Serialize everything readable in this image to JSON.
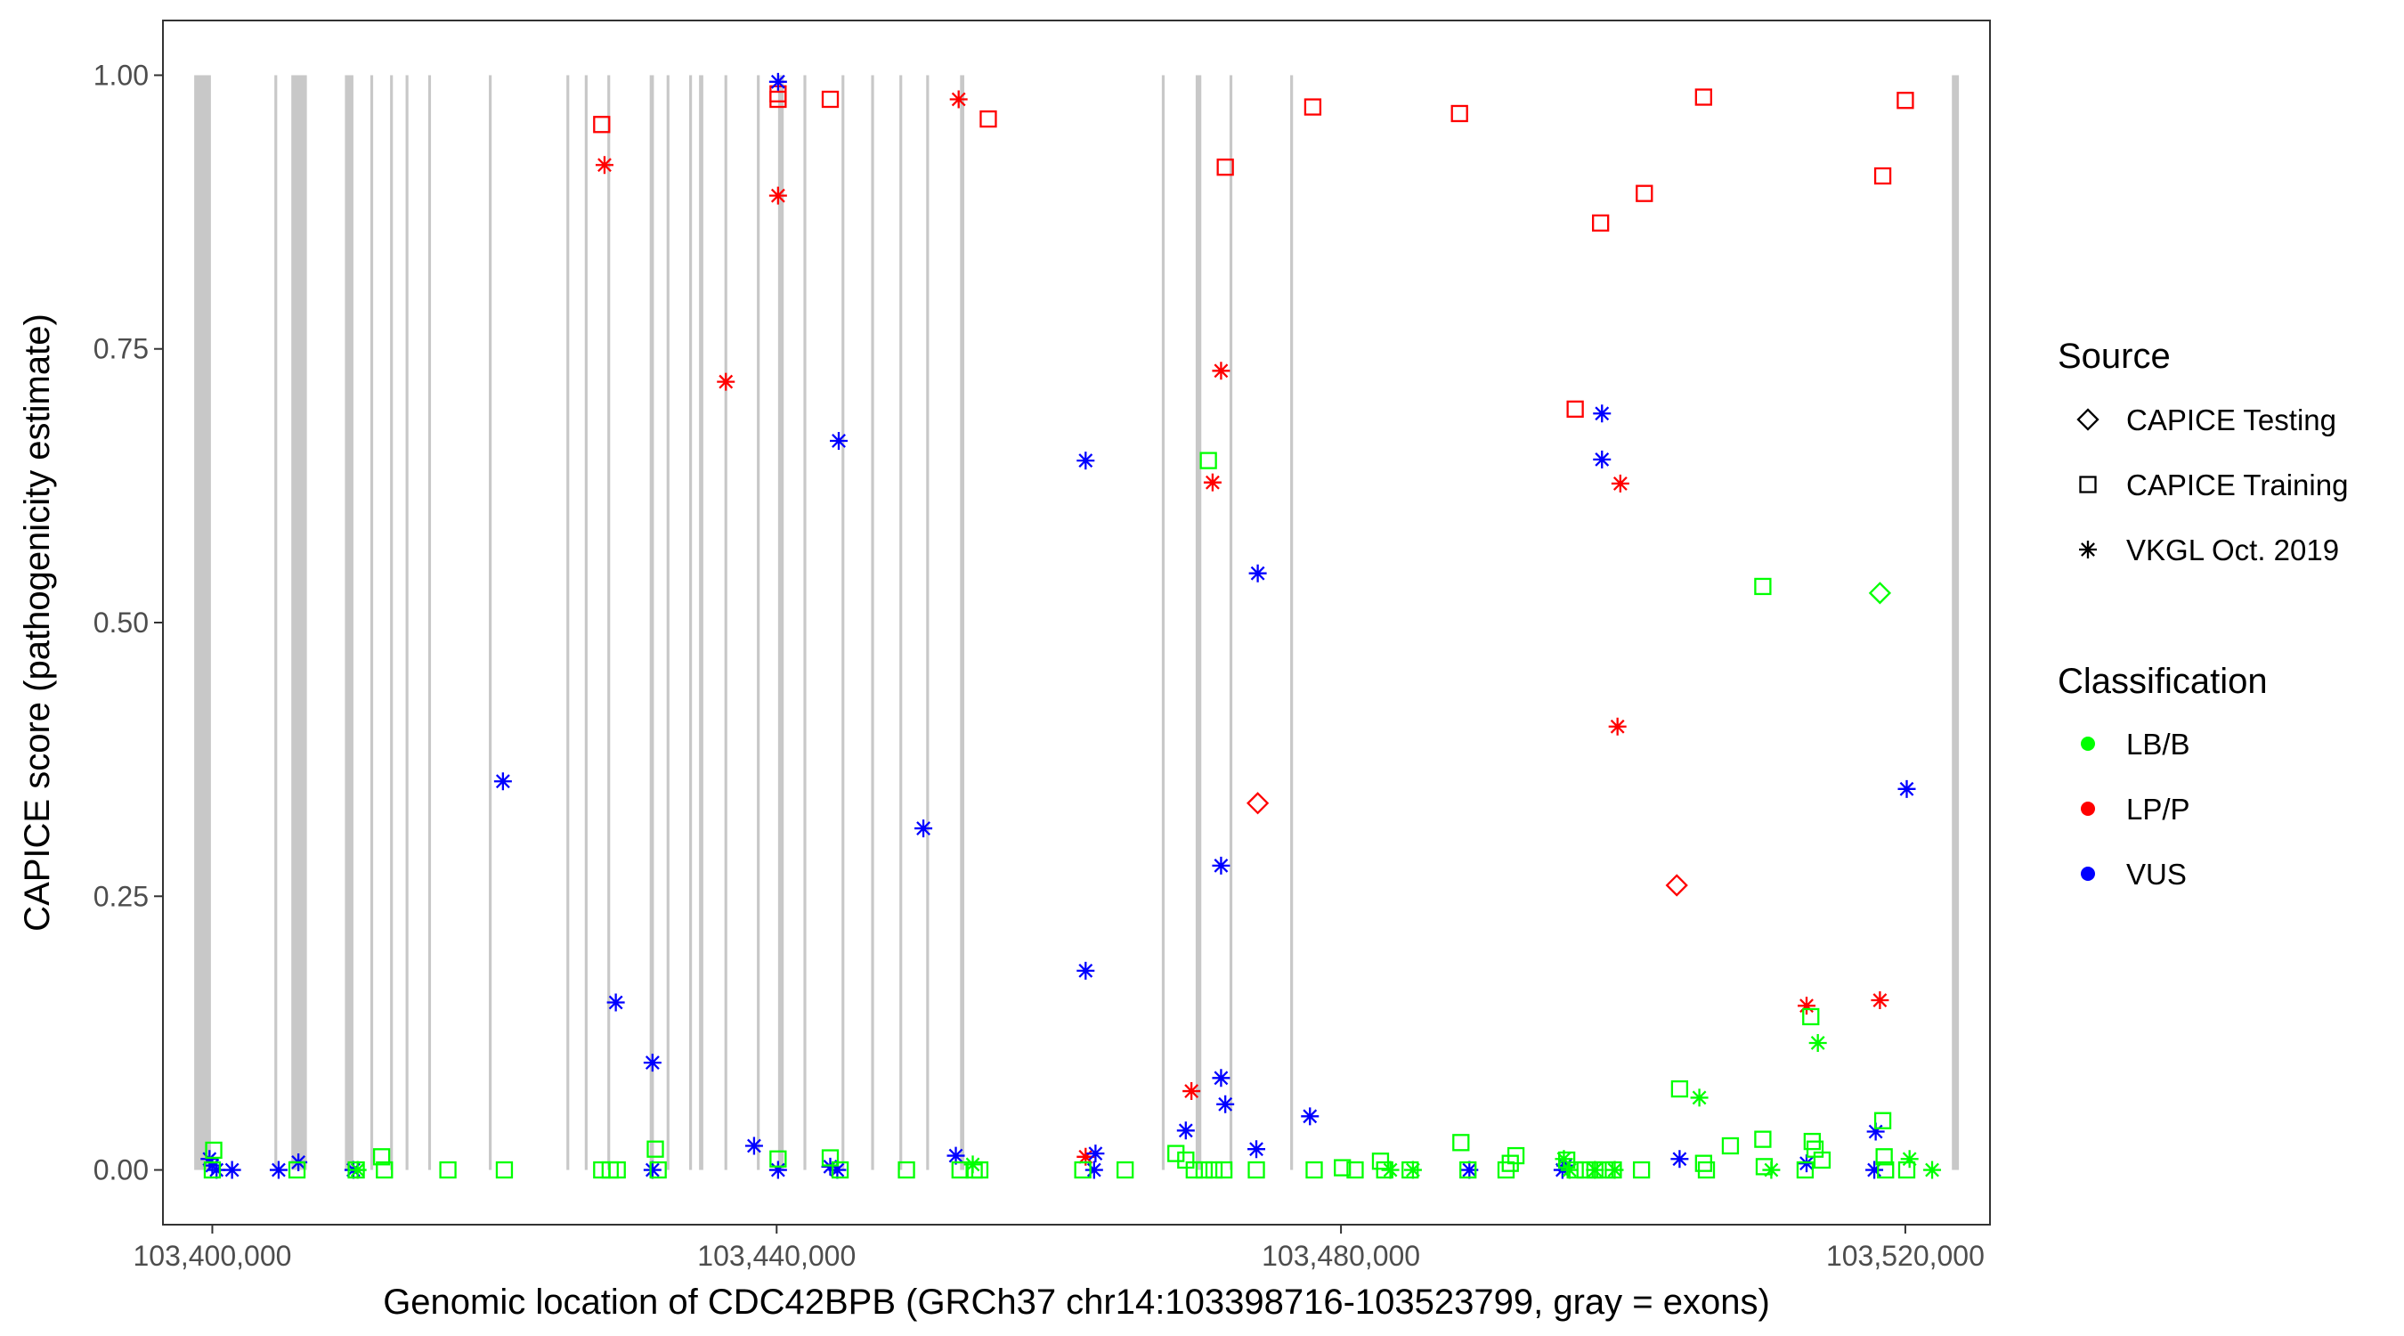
{
  "chart_data": {
    "type": "scatter",
    "title": "",
    "xlabel": "Genomic location of CDC42BPB (GRCh37 chr14:103398716-103523799, gray = exons)",
    "ylabel": "CAPICE score (pathogenicity estimate)",
    "xlim": [
      103396500,
      103526000
    ],
    "ylim": [
      -0.05,
      1.05
    ],
    "x_ticks": [
      103400000,
      103440000,
      103480000,
      103520000
    ],
    "x_tick_labels": [
      "103,400,000",
      "103,440,000",
      "103,480,000",
      "103,520,000"
    ],
    "y_ticks": [
      0,
      0.25,
      0.5,
      0.75,
      1
    ],
    "y_tick_labels": [
      "0.00",
      "0.25",
      "0.50",
      "0.75",
      "1.00"
    ],
    "grid": false,
    "exon_color": "#c8c8c8",
    "exons": [
      [
        103398716,
        103399900
      ],
      [
        103404400,
        103404600
      ],
      [
        103405600,
        103406700
      ],
      [
        103409400,
        103410000
      ],
      [
        103411200,
        103411400
      ],
      [
        103412600,
        103412800
      ],
      [
        103413700,
        103413900
      ],
      [
        103415300,
        103415500
      ],
      [
        103419600,
        103419800
      ],
      [
        103425100,
        103425300
      ],
      [
        103426400,
        103426600
      ],
      [
        103428000,
        103428200
      ],
      [
        103431000,
        103431300
      ],
      [
        103432200,
        103432400
      ],
      [
        103433800,
        103434000
      ],
      [
        103434500,
        103434800
      ],
      [
        103436300,
        103436500
      ],
      [
        103438600,
        103438800
      ],
      [
        103440100,
        103440500
      ],
      [
        103441900,
        103442100
      ],
      [
        103444600,
        103444800
      ],
      [
        103446700,
        103446900
      ],
      [
        103448700,
        103448900
      ],
      [
        103450600,
        103450800
      ],
      [
        103453000,
        103453300
      ],
      [
        103467300,
        103467500
      ],
      [
        103469700,
        103470100
      ],
      [
        103472100,
        103472300
      ],
      [
        103476400,
        103476600
      ],
      [
        103523300,
        103523799
      ]
    ],
    "legend": {
      "position": "right",
      "shape_title": "Source",
      "shapes": [
        {
          "label": "CAPICE Testing",
          "shape": "diamond"
        },
        {
          "label": "CAPICE Training",
          "shape": "square"
        },
        {
          "label": "VKGL Oct. 2019",
          "shape": "asterisk"
        }
      ],
      "color_title": "Classification",
      "colors": [
        {
          "label": "LB/B",
          "color": "#00ff00"
        },
        {
          "label": "LP/P",
          "color": "#ff0000"
        },
        {
          "label": "VUS",
          "color": "#0000ff"
        }
      ]
    },
    "series": [
      {
        "source": "CAPICE Training",
        "classification": "LP/P",
        "points": [
          [
            103427600,
            0.955
          ],
          [
            103440100,
            0.978
          ],
          [
            103440100,
            0.983
          ],
          [
            103443800,
            0.978
          ],
          [
            103455000,
            0.96
          ],
          [
            103471800,
            0.916
          ],
          [
            103478000,
            0.971
          ],
          [
            103488400,
            0.965
          ],
          [
            103496600,
            0.695
          ],
          [
            103498400,
            0.865
          ],
          [
            103501500,
            0.892
          ],
          [
            103505700,
            0.98
          ],
          [
            103518400,
            0.908
          ],
          [
            103520000,
            0.977
          ]
        ]
      },
      {
        "source": "VKGL Oct. 2019",
        "classification": "LP/P",
        "points": [
          [
            103427800,
            0.918
          ],
          [
            103436400,
            0.72
          ],
          [
            103440100,
            0.89
          ],
          [
            103452900,
            0.978
          ],
          [
            103461900,
            0.012
          ],
          [
            103469400,
            0.072
          ],
          [
            103470900,
            0.628
          ],
          [
            103471500,
            0.73
          ],
          [
            103499600,
            0.405
          ],
          [
            103499800,
            0.627
          ],
          [
            103513000,
            0.15
          ],
          [
            103518200,
            0.155
          ]
        ]
      },
      {
        "source": "CAPICE Testing",
        "classification": "LP/P",
        "points": [
          [
            103474100,
            0.335
          ],
          [
            103503800,
            0.26
          ]
        ]
      },
      {
        "source": "VKGL Oct. 2019",
        "classification": "VUS",
        "points": [
          [
            103399800,
            0.01
          ],
          [
            103400000,
            0.004
          ],
          [
            103400300,
            0.0
          ],
          [
            103401400,
            0.0
          ],
          [
            103404700,
            0.0
          ],
          [
            103406100,
            0.007
          ],
          [
            103410000,
            0.0
          ],
          [
            103420600,
            0.355
          ],
          [
            103428600,
            0.153
          ],
          [
            103431200,
            0.098
          ],
          [
            103431200,
            0.0
          ],
          [
            103438400,
            0.022
          ],
          [
            103440100,
            0.994
          ],
          [
            103440100,
            0.0
          ],
          [
            103444400,
            0.666
          ],
          [
            103443800,
            0.003
          ],
          [
            103444300,
            0.0
          ],
          [
            103450400,
            0.312
          ],
          [
            103452700,
            0.013
          ],
          [
            103461900,
            0.648
          ],
          [
            103461900,
            0.182
          ],
          [
            103462600,
            0.015
          ],
          [
            103462500,
            0.0
          ],
          [
            103469000,
            0.036
          ],
          [
            103471500,
            0.084
          ],
          [
            103471500,
            0.278
          ],
          [
            103471800,
            0.06
          ],
          [
            103474100,
            0.545
          ],
          [
            103474000,
            0.019
          ],
          [
            103477800,
            0.049
          ],
          [
            103489100,
            0.0
          ],
          [
            103495900,
            0.004
          ],
          [
            103495700,
            0.0
          ],
          [
            103498500,
            0.691
          ],
          [
            103498500,
            0.649
          ],
          [
            103504000,
            0.01
          ],
          [
            103513000,
            0.006
          ],
          [
            103517900,
            0.035
          ],
          [
            103517800,
            0.0
          ],
          [
            103520100,
            0.348
          ]
        ]
      },
      {
        "source": "CAPICE Training",
        "classification": "LB/B",
        "points": [
          [
            103400100,
            0.018
          ],
          [
            103400000,
            0.0
          ],
          [
            103406000,
            0.0
          ],
          [
            103410200,
            0.0
          ],
          [
            103412000,
            0.012
          ],
          [
            103412200,
            0.0
          ],
          [
            103416700,
            0.0
          ],
          [
            103420700,
            0.0
          ],
          [
            103427600,
            0.0
          ],
          [
            103428200,
            0.0
          ],
          [
            103428700,
            0.0
          ],
          [
            103431400,
            0.019
          ],
          [
            103431600,
            0.0
          ],
          [
            103440100,
            0.01
          ],
          [
            103443800,
            0.011
          ],
          [
            103444500,
            0.0
          ],
          [
            103449200,
            0.0
          ],
          [
            103453000,
            0.0
          ],
          [
            103454000,
            0.0
          ],
          [
            103454400,
            0.0
          ],
          [
            103461700,
            0.0
          ],
          [
            103464700,
            0.0
          ],
          [
            103468300,
            0.015
          ],
          [
            103469000,
            0.009
          ],
          [
            103469600,
            0.0
          ],
          [
            103470300,
            0.0
          ],
          [
            103470600,
            0.648
          ],
          [
            103471000,
            0.0
          ],
          [
            103471700,
            0.0
          ],
          [
            103474000,
            0.0
          ],
          [
            103478100,
            0.0
          ],
          [
            103480100,
            0.002
          ],
          [
            103481000,
            0.0
          ],
          [
            103482800,
            0.008
          ],
          [
            103483100,
            0.0
          ],
          [
            103484900,
            0.0
          ],
          [
            103488500,
            0.025
          ],
          [
            103489000,
            0.0
          ],
          [
            103491700,
            0.0
          ],
          [
            103492000,
            0.006
          ],
          [
            103492400,
            0.013
          ],
          [
            103496000,
            0.009
          ],
          [
            103496600,
            0.0
          ],
          [
            103497300,
            0.0
          ],
          [
            103498000,
            0.0
          ],
          [
            103498700,
            0.0
          ],
          [
            103499300,
            0.0
          ],
          [
            103501300,
            0.0
          ],
          [
            103504000,
            0.074
          ],
          [
            103505700,
            0.006
          ],
          [
            103505900,
            0.0
          ],
          [
            103507600,
            0.022
          ],
          [
            103509900,
            0.028
          ],
          [
            103510000,
            0.003
          ],
          [
            103509900,
            0.533
          ],
          [
            103512900,
            0.0
          ],
          [
            103513400,
            0.026
          ],
          [
            103513600,
            0.019
          ],
          [
            103514100,
            0.009
          ],
          [
            103513300,
            0.14
          ],
          [
            103518400,
            0.045
          ],
          [
            103518500,
            0.012
          ],
          [
            103518600,
            0.0
          ],
          [
            103520100,
            0.0
          ]
        ]
      },
      {
        "source": "VKGL Oct. 2019",
        "classification": "LB/B",
        "points": [
          [
            103410300,
            0.0
          ],
          [
            103453900,
            0.005
          ],
          [
            103483500,
            0.0
          ],
          [
            103485100,
            0.0
          ],
          [
            103495800,
            0.01
          ],
          [
            103496200,
            0.0
          ],
          [
            103498000,
            0.0
          ],
          [
            103499400,
            0.0
          ],
          [
            103505400,
            0.066
          ],
          [
            103510500,
            0.0
          ],
          [
            103513800,
            0.116
          ],
          [
            103520300,
            0.01
          ],
          [
            103521900,
            0.0
          ]
        ]
      },
      {
        "source": "CAPICE Testing",
        "classification": "LB/B",
        "points": [
          [
            103518200,
            0.527
          ]
        ]
      }
    ]
  }
}
